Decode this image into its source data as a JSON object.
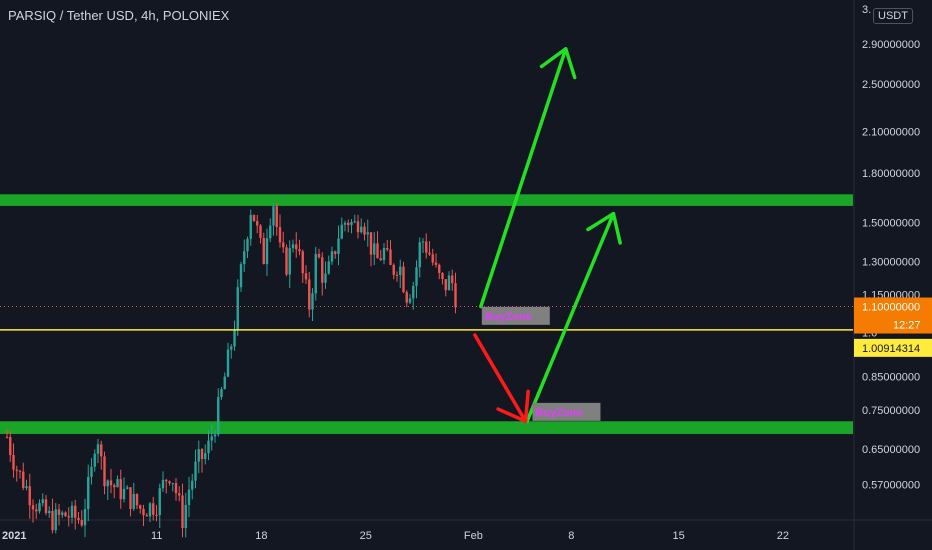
{
  "header": {
    "title": "PARSIQ / Tether USD, 4h, POLONIEX",
    "unit_badge": "USDT"
  },
  "colors": {
    "background": "#131722",
    "up_candle": "#26a69a",
    "down_candle": "#ef5350",
    "zone": "#1aa528",
    "arrow_up": "#22e022",
    "arrow_down": "#ff1a1a",
    "support_line": "#ffeb3b",
    "price_tag": "#f57c00",
    "zone_label_text": "#e040fb"
  },
  "chart_data": {
    "type": "candlestick",
    "y_scale": "log",
    "ylim": [
      0.5,
      3.35
    ],
    "x_ticks": [
      {
        "label": "2021",
        "bold": true,
        "x": 0
      },
      {
        "label": "11",
        "x": 10
      },
      {
        "label": "18",
        "x": 17
      },
      {
        "label": "25",
        "x": 24
      },
      {
        "label": "Feb",
        "x": 31
      },
      {
        "label": "8",
        "x": 38
      },
      {
        "label": "15",
        "x": 45
      },
      {
        "label": "22",
        "x": 52
      }
    ],
    "y_ticks": [
      {
        "label": "2.90000000",
        "value": 2.9
      },
      {
        "label": "2.50000000",
        "value": 2.5
      },
      {
        "label": "2.10000000",
        "value": 2.1
      },
      {
        "label": "1.80000000",
        "value": 1.8
      },
      {
        "label": "1.50000000",
        "value": 1.5
      },
      {
        "label": "1.30000000",
        "value": 1.3
      },
      {
        "label": "1.15000000",
        "value": 1.15
      },
      {
        "label": "0.85000000",
        "value": 0.85
      },
      {
        "label": "0.75000000",
        "value": 0.75
      },
      {
        "label": "0.65000000",
        "value": 0.65
      },
      {
        "label": "0.57000000",
        "value": 0.57
      }
    ],
    "partial_ticks": [
      {
        "label": "3.",
        "value": 3.3
      },
      {
        "label": "1.0",
        "value": 1.0
      }
    ],
    "current_price": {
      "value": 1.1,
      "label": "1.10000000",
      "countdown": "12:27"
    },
    "support_level": {
      "value": 1.00914314,
      "label": "1.00914314"
    },
    "zones": [
      {
        "top": 1.665,
        "bottom": 1.595
      },
      {
        "top": 0.72,
        "bottom": 0.687
      }
    ],
    "zone_labels": [
      {
        "text": "BuyZone",
        "x": 32.0,
        "y": 1.055
      },
      {
        "text": "BuyZone",
        "x": 35.4,
        "y": 0.74
      }
    ],
    "arrows": [
      {
        "kind": "up",
        "from": [
          31.8,
          1.1
        ],
        "to": [
          37.5,
          2.85
        ]
      },
      {
        "kind": "up",
        "from": [
          34.9,
          0.72
        ],
        "to": [
          40.7,
          1.55
        ]
      },
      {
        "kind": "down",
        "from": [
          31.4,
          0.99
        ],
        "to": [
          34.8,
          0.72
        ]
      }
    ],
    "price_segments": [
      [
        0,
        0.68
      ],
      [
        0.3,
        0.64
      ],
      [
        0.7,
        0.6
      ],
      [
        1.2,
        0.57
      ],
      [
        1.7,
        0.54
      ],
      [
        2.3,
        0.52
      ],
      [
        3.0,
        0.5
      ],
      [
        4.0,
        0.51
      ],
      [
        5.0,
        0.5
      ],
      [
        5.7,
        0.6
      ],
      [
        6.0,
        0.71
      ],
      [
        6.4,
        0.6
      ],
      [
        7.0,
        0.57
      ],
      [
        8.0,
        0.55
      ],
      [
        9.0,
        0.52
      ],
      [
        10.0,
        0.53
      ],
      [
        10.6,
        0.58
      ],
      [
        11.0,
        0.6
      ],
      [
        11.8,
        0.5
      ],
      [
        12.2,
        0.56
      ],
      [
        12.8,
        0.62
      ],
      [
        13.4,
        0.64
      ],
      [
        14.0,
        0.72
      ],
      [
        14.5,
        0.82
      ],
      [
        15.2,
        1.0
      ],
      [
        15.6,
        1.2
      ],
      [
        16.0,
        1.4
      ],
      [
        16.4,
        1.6
      ],
      [
        16.8,
        1.45
      ],
      [
        17.2,
        1.3
      ],
      [
        17.5,
        1.5
      ],
      [
        17.9,
        1.62
      ],
      [
        18.3,
        1.35
      ],
      [
        18.8,
        1.28
      ],
      [
        19.3,
        1.45
      ],
      [
        19.8,
        1.25
      ],
      [
        20.3,
        1.1
      ],
      [
        20.8,
        1.35
      ],
      [
        21.3,
        1.2
      ],
      [
        21.8,
        1.3
      ],
      [
        22.3,
        1.45
      ],
      [
        22.8,
        1.52
      ],
      [
        23.3,
        1.48
      ],
      [
        23.8,
        1.55
      ],
      [
        24.3,
        1.4
      ],
      [
        24.8,
        1.3
      ],
      [
        25.3,
        1.35
      ],
      [
        25.8,
        1.25
      ],
      [
        26.3,
        1.3
      ],
      [
        26.8,
        1.15
      ],
      [
        27.3,
        1.2
      ],
      [
        27.8,
        1.42
      ],
      [
        28.3,
        1.35
      ],
      [
        28.8,
        1.25
      ],
      [
        29.3,
        1.18
      ],
      [
        29.8,
        1.22
      ],
      [
        30.3,
        1.1
      ]
    ]
  }
}
